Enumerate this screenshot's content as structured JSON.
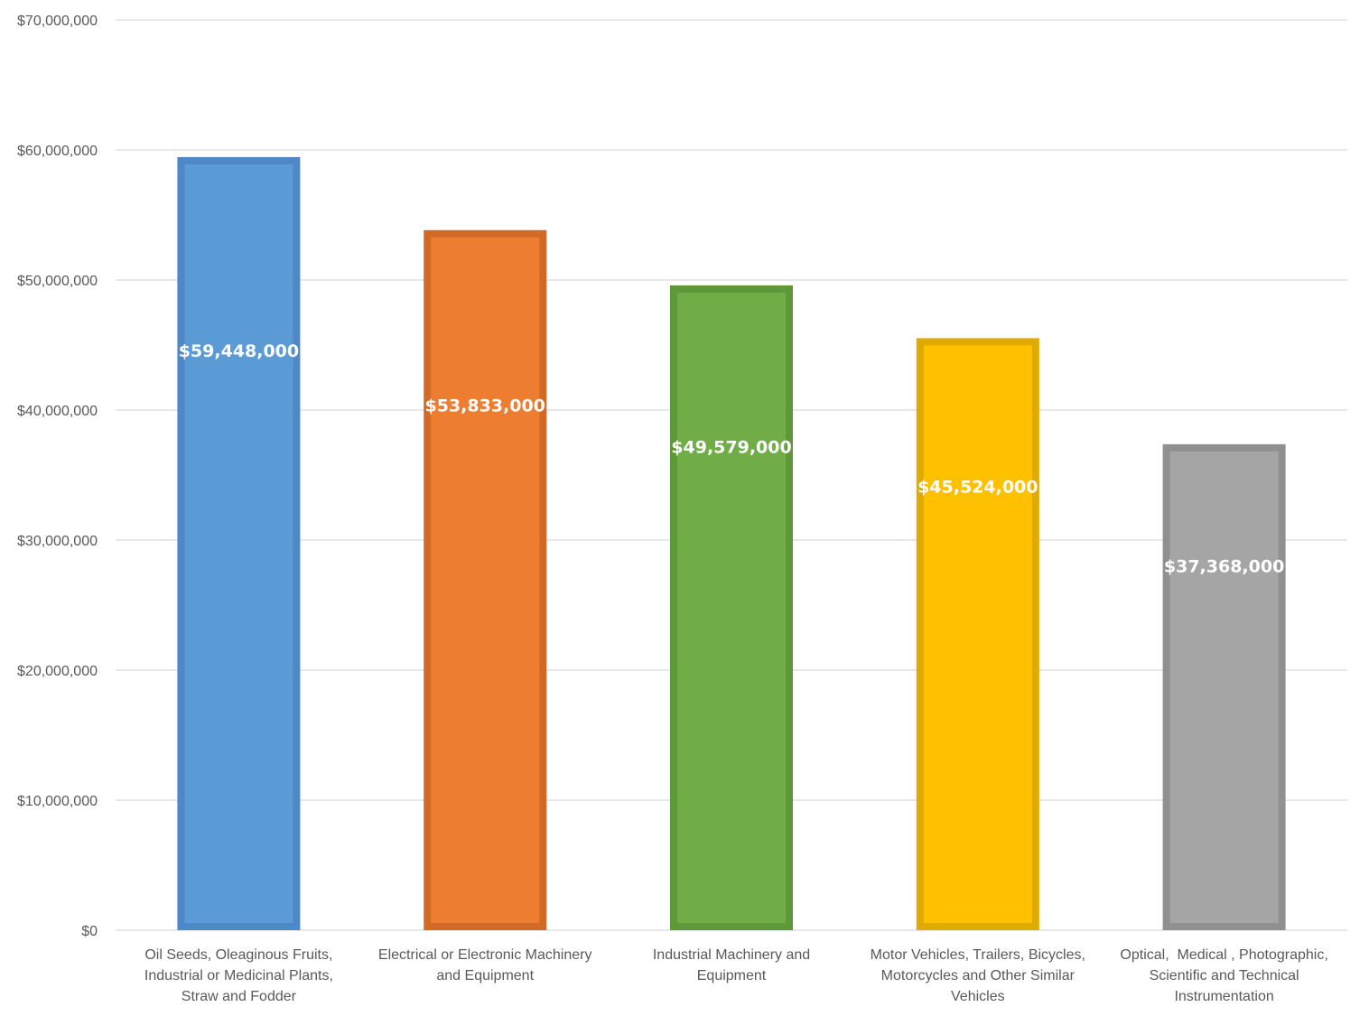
{
  "chart_data": {
    "type": "bar",
    "title": "",
    "xlabel": "",
    "ylabel": "",
    "ylim": [
      0,
      70000000
    ],
    "ytick_step": 10000000,
    "ytick_labels": [
      "$0",
      "$10,000,000",
      "$20,000,000",
      "$30,000,000",
      "$40,000,000",
      "$50,000,000",
      "$60,000,000",
      "$70,000,000"
    ],
    "grid": true,
    "legend": "none",
    "categories": [
      [
        "Oil Seeds, Oleaginous Fruits,",
        "Industrial or Medicinal Plants,",
        "Straw and Fodder"
      ],
      [
        "Electrical or Electronic Machinery",
        "and Equipment"
      ],
      [
        "Industrial Machinery and",
        "Equipment"
      ],
      [
        "Motor Vehicles, Trailers, Bicycles,",
        "Motorcycles and Other Similar",
        "Vehicles"
      ],
      [
        "Optical,  Medical , Photographic,",
        "Scientific and Technical",
        "Instrumentation"
      ]
    ],
    "values": [
      59448000,
      53833000,
      49579000,
      45524000,
      37368000
    ],
    "data_labels": [
      "$59,448,000",
      "$53,833,000",
      "$49,579,000",
      "$45,524,000",
      "$37,368,000"
    ],
    "colors": [
      {
        "fill": "#5b9bd5",
        "border": "#4f88c6"
      },
      {
        "fill": "#ed7d31",
        "border": "#d26a26"
      },
      {
        "fill": "#70ad47",
        "border": "#5f9838"
      },
      {
        "fill": "#ffc000",
        "border": "#e0aa00"
      },
      {
        "fill": "#a5a5a5",
        "border": "#909090"
      }
    ]
  }
}
